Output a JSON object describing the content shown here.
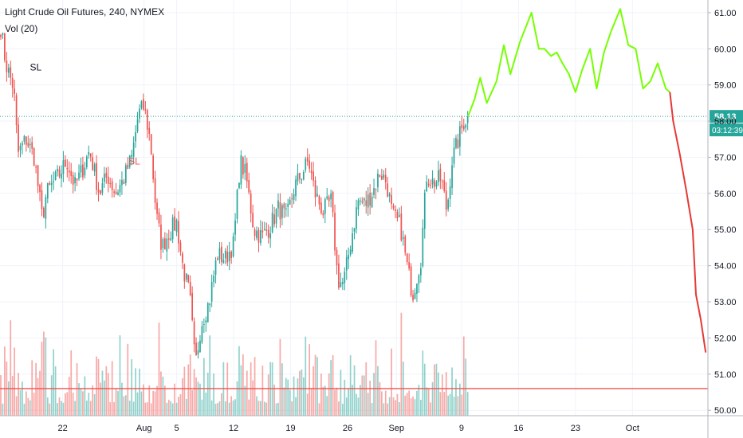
{
  "header": {
    "symbol_title": "Light Crude Oil Futures, 240, NYMEX",
    "volume_label": "Vol (20)"
  },
  "price_tag": {
    "price": "58.13",
    "countdown": "03:12:39",
    "color": "#26a69a"
  },
  "annotations": [
    {
      "text": "SL",
      "price": 59.4,
      "date": 18.7,
      "color": "#131722"
    },
    {
      "text": "SL",
      "price": 56.8,
      "date": 30.8,
      "color": "#ef5350"
    }
  ],
  "chart_data": {
    "type": "candlestick",
    "title": "Light Crude Oil Futures, 240, NYMEX",
    "xlabel": "",
    "ylabel": "",
    "x_tick_labels": [
      "22",
      "Aug",
      "5",
      "12",
      "19",
      "26",
      "Sep",
      "9",
      "16",
      "23",
      "Oct"
    ],
    "x_tick_dates": [
      22,
      32,
      36,
      43,
      50,
      57,
      63,
      71,
      78,
      85,
      92
    ],
    "y_tick_labels": [
      "50.00",
      "51.00",
      "52.00",
      "53.00",
      "54.00",
      "55.00",
      "56.00",
      "57.00",
      "58.00",
      "59.00",
      "60.00",
      "61.00"
    ],
    "ylim": [
      49.85,
      61.35
    ],
    "xlim": [
      14.4,
      100.5
    ],
    "grid": true,
    "up_color": "#26a69a",
    "down_color": "#ef5350",
    "price_series_key": [
      [
        14.4,
        60.6
      ],
      [
        15.0,
        59.6
      ],
      [
        16.0,
        58.9
      ],
      [
        16.5,
        57.1
      ],
      [
        17.5,
        57.5
      ],
      [
        18.5,
        57.0
      ],
      [
        19.5,
        55.3
      ],
      [
        20.0,
        56.0
      ],
      [
        21.5,
        56.5
      ],
      [
        22.5,
        56.9
      ],
      [
        23.5,
        56.2
      ],
      [
        24.5,
        56.7
      ],
      [
        25.3,
        57.2
      ],
      [
        26.5,
        56.0
      ],
      [
        27.5,
        56.5
      ],
      [
        28.5,
        56.0
      ],
      [
        29.5,
        56.4
      ],
      [
        30.5,
        57.0
      ],
      [
        31.3,
        58.2
      ],
      [
        32.0,
        58.4
      ],
      [
        32.8,
        57.4
      ],
      [
        33.5,
        55.4
      ],
      [
        34.2,
        54.5
      ],
      [
        35.0,
        54.9
      ],
      [
        36.0,
        55.2
      ],
      [
        36.8,
        53.9
      ],
      [
        37.6,
        53.2
      ],
      [
        38.3,
        51.2
      ],
      [
        39.0,
        52.4
      ],
      [
        40.0,
        53.0
      ],
      [
        41.0,
        54.3
      ],
      [
        42.0,
        54.2
      ],
      [
        43.0,
        54.6
      ],
      [
        43.8,
        56.9
      ],
      [
        44.5,
        56.5
      ],
      [
        45.5,
        55.0
      ],
      [
        46.5,
        54.8
      ],
      [
        47.5,
        55.1
      ],
      [
        48.5,
        55.6
      ],
      [
        49.5,
        55.3
      ],
      [
        50.5,
        56.2
      ],
      [
        51.5,
        56.6
      ],
      [
        52.2,
        56.9
      ],
      [
        53.0,
        56.0
      ],
      [
        54.0,
        55.5
      ],
      [
        55.0,
        55.8
      ],
      [
        55.8,
        53.6
      ],
      [
        56.5,
        53.5
      ],
      [
        57.5,
        54.8
      ],
      [
        58.3,
        55.8
      ],
      [
        59.2,
        55.7
      ],
      [
        60.2,
        56.1
      ],
      [
        61.0,
        56.6
      ],
      [
        61.8,
        56.3
      ],
      [
        62.5,
        55.4
      ],
      [
        63.5,
        55.1
      ],
      [
        64.3,
        54.0
      ],
      [
        65.0,
        53.2
      ],
      [
        66.0,
        54.2
      ],
      [
        66.7,
        56.5
      ],
      [
        67.5,
        56.3
      ],
      [
        68.5,
        56.4
      ],
      [
        69.2,
        55.5
      ],
      [
        69.8,
        56.9
      ],
      [
        70.5,
        57.4
      ],
      [
        71.3,
        58.0
      ],
      [
        71.8,
        58.13
      ]
    ],
    "volume_series": {
      "name": "Vol (20)",
      "ma_level": 50.6,
      "ma_color": "#ef5350"
    },
    "projection": {
      "up_path_color": "#76ff03",
      "down_path_color": "#e53935",
      "up_path": [
        [
          71.8,
          58.13
        ],
        [
          72.6,
          58.6
        ],
        [
          73.3,
          59.2
        ],
        [
          74.1,
          58.5
        ],
        [
          75.3,
          59.1
        ],
        [
          76.2,
          60.1
        ],
        [
          77.0,
          59.3
        ],
        [
          78.2,
          60.2
        ],
        [
          79.6,
          61.0
        ],
        [
          80.5,
          60.0
        ],
        [
          81.2,
          60.0
        ],
        [
          82.0,
          59.8
        ],
        [
          82.7,
          59.9
        ],
        [
          83.4,
          59.6
        ],
        [
          84.2,
          59.3
        ],
        [
          85.0,
          58.8
        ],
        [
          85.8,
          59.4
        ],
        [
          86.8,
          60.0
        ],
        [
          87.6,
          58.9
        ],
        [
          88.5,
          59.9
        ],
        [
          89.4,
          60.5
        ],
        [
          90.5,
          61.1
        ],
        [
          91.5,
          60.1
        ],
        [
          92.4,
          60.0
        ],
        [
          93.3,
          58.9
        ],
        [
          94.2,
          59.1
        ],
        [
          95.1,
          59.6
        ],
        [
          96.1,
          58.9
        ],
        [
          96.6,
          58.8
        ]
      ],
      "down_path": [
        [
          96.6,
          58.8
        ],
        [
          97.0,
          58.0
        ],
        [
          97.8,
          57.1
        ],
        [
          98.6,
          56.1
        ],
        [
          99.4,
          55.0
        ],
        [
          99.8,
          53.2
        ],
        [
          100.4,
          52.5
        ],
        [
          101.0,
          51.6
        ]
      ]
    }
  }
}
